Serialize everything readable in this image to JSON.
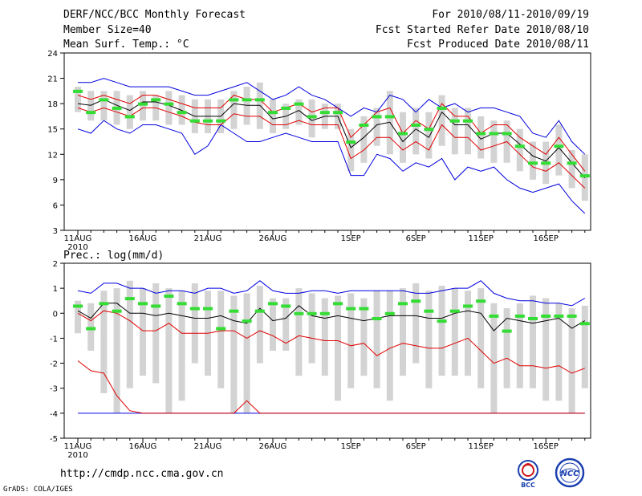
{
  "header": {
    "title": "DERF/NCC/BCC Monthly Forecast",
    "member_size": "Member Size=40",
    "variable": "Mean Surf. Temp.: °C",
    "period": "For 2010/08/11-2010/09/19",
    "started": "Fcst Started Refer Date 2010/08/10",
    "produced": "Fcst Produced Date 2010/08/11"
  },
  "footer": {
    "url": "http://cmdp.ncc.cma.gov.cn",
    "credit": "GrADS: COLA/IGES",
    "logo_bcc": "BCC",
    "logo_ncc": "NCC"
  },
  "colors": {
    "box": "#d3d3d3",
    "mean": "#000000",
    "inner": "#e00000",
    "outer": "#0000e0",
    "median": "#33dd33"
  },
  "chart_data": [
    {
      "type": "box",
      "title": "Mean Surf. Temp.: °C",
      "ylim": [
        3,
        24
      ],
      "yticks": [
        3,
        6,
        9,
        12,
        15,
        18,
        21,
        24
      ],
      "xlim": [
        0,
        39
      ],
      "x_tick_positions": [
        0,
        5,
        10,
        15,
        21,
        26,
        31,
        36
      ],
      "x_tick_labels": [
        "11AUG",
        "16AUG",
        "21AUG",
        "26AUG",
        "1SEP",
        "6SEP",
        "11SEP",
        "16SEP"
      ],
      "x_year_label": "2010",
      "series": [
        {
          "name": "max",
          "color": "outer",
          "values": [
            20.5,
            20.5,
            21.0,
            20.5,
            20.0,
            20.0,
            20.0,
            20.0,
            19.5,
            19.0,
            19.0,
            19.5,
            20.0,
            20.5,
            19.5,
            18.5,
            19.0,
            20.0,
            19.0,
            18.5,
            17.5,
            16.5,
            17.5,
            17.0,
            19.0,
            18.5,
            17.0,
            18.5,
            17.5,
            18.0,
            17.0,
            17.5,
            17.5,
            17.0,
            16.5,
            14.5,
            14.0,
            16.0,
            13.5,
            12.0
          ]
        },
        {
          "name": "inner_upper",
          "color": "inner",
          "values": [
            19.0,
            18.5,
            19.0,
            18.5,
            18.0,
            19.0,
            19.0,
            18.5,
            18.0,
            17.5,
            17.5,
            17.5,
            19.0,
            18.5,
            18.5,
            17.0,
            17.5,
            18.0,
            17.0,
            17.5,
            17.5,
            14.0,
            15.5,
            17.0,
            17.5,
            14.5,
            16.0,
            15.0,
            18.0,
            16.5,
            16.5,
            14.5,
            15.5,
            15.5,
            14.0,
            13.0,
            12.0,
            14.0,
            12.0,
            10.0
          ]
        },
        {
          "name": "mean",
          "color": "mean",
          "values": [
            18.0,
            17.8,
            18.5,
            17.8,
            17.2,
            18.2,
            18.2,
            17.8,
            17.2,
            16.5,
            16.5,
            16.5,
            18.0,
            17.8,
            17.8,
            16.2,
            16.5,
            17.2,
            16.0,
            16.5,
            16.5,
            12.8,
            14.0,
            15.5,
            15.8,
            13.5,
            15.0,
            14.0,
            17.0,
            15.5,
            15.5,
            13.8,
            14.5,
            14.5,
            13.2,
            11.8,
            11.2,
            12.8,
            11.0,
            9.2
          ]
        },
        {
          "name": "inner_lower",
          "color": "inner",
          "values": [
            17.5,
            17.0,
            17.5,
            17.0,
            16.5,
            17.5,
            17.5,
            17.0,
            16.5,
            15.8,
            15.5,
            15.5,
            16.8,
            16.5,
            16.5,
            15.5,
            15.5,
            16.0,
            15.5,
            15.5,
            15.5,
            11.5,
            12.5,
            14.0,
            14.0,
            12.5,
            13.5,
            12.5,
            15.5,
            14.0,
            14.0,
            12.5,
            13.0,
            13.5,
            12.0,
            10.5,
            10.0,
            11.0,
            9.5,
            8.0
          ]
        },
        {
          "name": "min",
          "color": "outer",
          "values": [
            15.0,
            14.5,
            16.0,
            15.0,
            14.5,
            15.5,
            15.5,
            15.0,
            14.5,
            12.0,
            13.0,
            15.5,
            14.5,
            13.5,
            13.5,
            14.0,
            14.5,
            14.0,
            13.5,
            13.5,
            13.5,
            9.5,
            9.5,
            12.0,
            11.5,
            10.0,
            11.0,
            10.5,
            11.5,
            9.0,
            10.5,
            10.0,
            10.5,
            9.0,
            8.0,
            7.5,
            8.0,
            8.5,
            6.5,
            5.0
          ]
        },
        {
          "name": "box_top",
          "color": "box",
          "values": [
            20.0,
            19.5,
            19.5,
            19.5,
            19.0,
            19.5,
            19.0,
            19.5,
            19.0,
            18.5,
            18.5,
            18.5,
            19.5,
            20.0,
            20.5,
            18.5,
            18.0,
            18.5,
            18.5,
            18.0,
            18.0,
            15.0,
            16.5,
            17.5,
            19.5,
            17.0,
            17.5,
            17.0,
            19.0,
            17.5,
            17.5,
            16.5,
            16.0,
            16.0,
            15.0,
            13.5,
            13.5,
            15.5,
            12.5,
            12.0
          ]
        },
        {
          "name": "box_bottom",
          "color": "box",
          "values": [
            17.0,
            16.0,
            16.0,
            15.5,
            15.0,
            16.0,
            16.0,
            15.5,
            15.5,
            14.5,
            14.5,
            14.5,
            15.0,
            15.5,
            15.0,
            14.5,
            15.0,
            15.5,
            14.0,
            15.0,
            15.0,
            10.0,
            11.0,
            13.0,
            12.0,
            11.0,
            12.0,
            11.5,
            13.0,
            12.0,
            12.0,
            11.5,
            11.0,
            11.0,
            10.0,
            9.0,
            8.5,
            9.5,
            8.0,
            6.5
          ]
        },
        {
          "name": "median",
          "color": "median",
          "values": [
            19.5,
            17.0,
            18.5,
            17.5,
            16.5,
            18.0,
            18.5,
            18.0,
            17.0,
            16.0,
            16.0,
            16.0,
            18.5,
            18.5,
            18.5,
            17.0,
            17.5,
            18.0,
            16.5,
            17.0,
            17.0,
            13.5,
            15.5,
            16.5,
            16.5,
            14.5,
            15.5,
            15.0,
            17.5,
            16.0,
            16.0,
            14.5,
            14.5,
            14.5,
            13.0,
            11.0,
            11.0,
            13.0,
            11.0,
            9.5
          ]
        }
      ]
    },
    {
      "type": "box",
      "title": "Prec.: log(mm/d)",
      "ylim": [
        -5,
        2
      ],
      "yticks": [
        -5,
        -4,
        -3,
        -2,
        -1,
        0,
        1,
        2
      ],
      "xlim": [
        0,
        39
      ],
      "x_tick_positions": [
        0,
        5,
        10,
        15,
        21,
        26,
        31,
        36
      ],
      "x_tick_labels": [
        "11AUG",
        "16AUG",
        "21AUG",
        "26AUG",
        "1SEP",
        "6SEP",
        "11SEP",
        "16SEP"
      ],
      "x_year_label": "2010",
      "series": [
        {
          "name": "max",
          "color": "outer",
          "values": [
            0.9,
            0.8,
            1.2,
            1.2,
            1.0,
            1.0,
            0.8,
            0.9,
            0.9,
            0.8,
            1.0,
            1.0,
            0.8,
            0.9,
            1.3,
            0.9,
            0.8,
            0.8,
            0.9,
            0.9,
            0.8,
            0.9,
            0.9,
            0.9,
            0.9,
            0.9,
            0.8,
            0.8,
            0.9,
            1.0,
            1.0,
            1.3,
            0.8,
            0.6,
            0.5,
            0.5,
            0.4,
            0.4,
            0.3,
            0.6
          ]
        },
        {
          "name": "mean",
          "color": "mean",
          "values": [
            0.1,
            -0.2,
            0.4,
            0.4,
            0.0,
            0.0,
            -0.1,
            0.0,
            -0.1,
            -0.2,
            -0.2,
            -0.1,
            -0.3,
            -0.4,
            0.2,
            -0.3,
            -0.2,
            0.3,
            -0.1,
            -0.2,
            -0.1,
            -0.2,
            -0.3,
            -0.2,
            -0.1,
            -0.1,
            -0.1,
            -0.2,
            -0.2,
            0.0,
            0.1,
            0.0,
            -0.7,
            -0.2,
            -0.3,
            -0.4,
            -0.3,
            -0.2,
            -0.6,
            -0.3
          ]
        },
        {
          "name": "inner_upper",
          "color": "inner",
          "values": [
            0.0,
            -0.3,
            0.1,
            0.0,
            -0.3,
            -0.7,
            -0.7,
            -0.4,
            -0.8,
            -0.8,
            -0.8,
            -0.7,
            -0.7,
            -1.0,
            -0.7,
            -0.9,
            -1.2,
            -0.9,
            -1.0,
            -1.1,
            -1.1,
            -1.3,
            -1.2,
            -1.7,
            -1.4,
            -1.2,
            -1.3,
            -1.4,
            -1.4,
            -1.2,
            -1.0,
            -1.5,
            -2.0,
            -1.8,
            -2.1,
            -2.1,
            -2.2,
            -2.1,
            -2.4,
            -2.2
          ]
        },
        {
          "name": "inner_lower",
          "color": "inner",
          "values": [
            -1.9,
            -2.3,
            -2.4,
            -3.3,
            -3.9,
            -4.0,
            -4.0,
            -4.0,
            -4.0,
            -4.0,
            -4.0,
            -4.0,
            -4.0,
            -3.5,
            -4.0,
            -4.0,
            -4.0,
            -4.0,
            -4.0,
            -4.0,
            -4.0,
            -4.0,
            -4.0,
            -4.0,
            -4.0,
            -4.0,
            -4.0,
            -4.0,
            -4.0,
            -4.0,
            -4.0,
            -4.0,
            -4.0,
            -4.0,
            -4.0,
            -4.0,
            -4.0,
            -4.0,
            -4.0,
            -4.0
          ]
        },
        {
          "name": "min",
          "color": "outer",
          "values": [
            -4.0,
            -4.0,
            -4.0,
            -4.0,
            -4.0,
            -4.0,
            -4.0,
            -4.0,
            -4.0,
            -4.0,
            -4.0,
            -4.0,
            -4.0,
            -4.0,
            -4.0,
            -4.0,
            -4.0,
            -4.0,
            -4.0,
            -4.0,
            -4.0,
            -4.0,
            -4.0,
            -4.0,
            -4.0,
            -4.0,
            -4.0,
            -4.0,
            -4.0,
            -4.0,
            -4.0,
            -4.0,
            -4.0,
            -4.0,
            -4.0,
            -4.0,
            -4.0,
            -4.0,
            -4.0,
            -4.0
          ]
        },
        {
          "name": "box_top",
          "color": "box",
          "values": [
            0.5,
            0.4,
            0.9,
            1.0,
            1.3,
            1.0,
            1.2,
            1.0,
            0.9,
            1.2,
            0.9,
            0.9,
            0.7,
            0.8,
            1.1,
            0.6,
            0.6,
            1.0,
            0.8,
            0.6,
            0.7,
            0.8,
            0.6,
            0.9,
            0.9,
            1.0,
            1.2,
            0.9,
            1.1,
            1.0,
            0.9,
            1.0,
            0.4,
            0.2,
            0.4,
            0.7,
            0.6,
            0.4,
            0.2,
            0.3
          ]
        },
        {
          "name": "box_bottom",
          "color": "box",
          "values": [
            -0.8,
            -1.5,
            -3.2,
            -4.0,
            -3.0,
            -2.5,
            -2.8,
            -4.0,
            -3.5,
            -2.0,
            -2.5,
            -3.0,
            -4.0,
            -4.0,
            -2.0,
            -1.5,
            -1.5,
            -2.5,
            -2.0,
            -2.5,
            -3.5,
            -3.0,
            -2.5,
            -3.0,
            -3.5,
            -2.5,
            -2.0,
            -3.0,
            -2.5,
            -2.5,
            -2.5,
            -3.0,
            -4.0,
            -3.0,
            -3.0,
            -3.0,
            -3.5,
            -3.5,
            -4.0,
            -3.0
          ]
        },
        {
          "name": "median",
          "color": "median",
          "values": [
            0.3,
            -0.6,
            0.4,
            0.1,
            0.6,
            0.4,
            0.3,
            0.7,
            0.4,
            0.2,
            0.2,
            -0.6,
            0.1,
            -0.3,
            0.1,
            0.4,
            0.3,
            0.0,
            0.0,
            0.0,
            0.4,
            0.2,
            0.2,
            -0.2,
            0.0,
            0.4,
            0.5,
            0.1,
            -0.3,
            0.1,
            0.3,
            0.5,
            -0.1,
            -0.7,
            -0.1,
            -0.2,
            -0.1,
            -0.1,
            -0.1,
            -0.4
          ]
        }
      ]
    }
  ]
}
